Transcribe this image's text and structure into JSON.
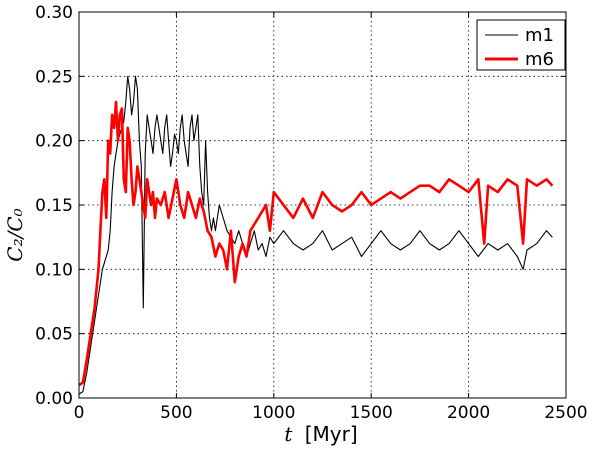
{
  "chart_data": {
    "type": "line",
    "xlabel_symbol": "t",
    "xlabel_unit": "[Myr]",
    "ylabel": "C₂/C₀",
    "xlim": [
      0,
      2500
    ],
    "ylim": [
      0,
      0.3
    ],
    "grid": true,
    "legend": "top-right",
    "x_ticks": [
      "0",
      "500",
      "1000",
      "1500",
      "2000",
      "2500"
    ],
    "y_ticks": [
      "0.00",
      "0.05",
      "0.10",
      "0.15",
      "0.20",
      "0.25",
      "0.30"
    ],
    "series": [
      {
        "name": "m1",
        "color": "#000000",
        "x": [
          0,
          20,
          40,
          60,
          80,
          100,
          120,
          140,
          150,
          160,
          170,
          180,
          190,
          200,
          210,
          220,
          230,
          240,
          250,
          260,
          270,
          280,
          290,
          300,
          310,
          320,
          330,
          340,
          350,
          360,
          370,
          380,
          390,
          400,
          410,
          420,
          430,
          440,
          450,
          460,
          470,
          480,
          490,
          500,
          510,
          520,
          530,
          540,
          550,
          560,
          570,
          580,
          590,
          600,
          610,
          620,
          630,
          640,
          650,
          660,
          670,
          680,
          690,
          700,
          720,
          740,
          760,
          780,
          800,
          820,
          840,
          860,
          880,
          900,
          920,
          940,
          960,
          980,
          1000,
          1050,
          1100,
          1150,
          1200,
          1250,
          1300,
          1350,
          1400,
          1450,
          1500,
          1550,
          1600,
          1650,
          1700,
          1750,
          1800,
          1850,
          1900,
          1950,
          2000,
          2050,
          2100,
          2150,
          2200,
          2250,
          2280,
          2300,
          2350,
          2400,
          2430
        ],
        "y": [
          0.003,
          0.005,
          0.02,
          0.04,
          0.06,
          0.08,
          0.1,
          0.11,
          0.115,
          0.13,
          0.16,
          0.18,
          0.19,
          0.2,
          0.205,
          0.21,
          0.215,
          0.23,
          0.25,
          0.24,
          0.22,
          0.23,
          0.25,
          0.24,
          0.2,
          0.18,
          0.07,
          0.19,
          0.22,
          0.21,
          0.2,
          0.19,
          0.21,
          0.22,
          0.21,
          0.2,
          0.19,
          0.21,
          0.22,
          0.2,
          0.18,
          0.19,
          0.205,
          0.2,
          0.19,
          0.21,
          0.22,
          0.2,
          0.19,
          0.18,
          0.21,
          0.22,
          0.2,
          0.21,
          0.22,
          0.18,
          0.16,
          0.15,
          0.2,
          0.16,
          0.14,
          0.13,
          0.14,
          0.13,
          0.15,
          0.14,
          0.13,
          0.125,
          0.12,
          0.13,
          0.12,
          0.11,
          0.12,
          0.13,
          0.115,
          0.12,
          0.11,
          0.125,
          0.12,
          0.13,
          0.12,
          0.115,
          0.12,
          0.13,
          0.115,
          0.12,
          0.125,
          0.11,
          0.12,
          0.13,
          0.12,
          0.115,
          0.12,
          0.13,
          0.12,
          0.115,
          0.12,
          0.13,
          0.12,
          0.11,
          0.12,
          0.115,
          0.12,
          0.11,
          0.1,
          0.115,
          0.12,
          0.13,
          0.125
        ]
      },
      {
        "name": "m6",
        "color": "#ff0000",
        "x": [
          0,
          20,
          40,
          60,
          80,
          100,
          110,
          120,
          130,
          140,
          150,
          160,
          170,
          180,
          190,
          200,
          210,
          220,
          230,
          240,
          250,
          260,
          270,
          280,
          290,
          300,
          310,
          320,
          330,
          340,
          350,
          360,
          370,
          380,
          390,
          400,
          420,
          440,
          460,
          480,
          500,
          520,
          540,
          560,
          580,
          600,
          620,
          640,
          660,
          680,
          700,
          720,
          740,
          760,
          780,
          800,
          820,
          840,
          860,
          880,
          900,
          920,
          940,
          960,
          980,
          1000,
          1050,
          1100,
          1150,
          1200,
          1250,
          1300,
          1350,
          1400,
          1450,
          1500,
          1550,
          1600,
          1650,
          1700,
          1750,
          1800,
          1850,
          1900,
          1950,
          2000,
          2050,
          2080,
          2100,
          2150,
          2200,
          2250,
          2280,
          2300,
          2350,
          2400,
          2430
        ],
        "y": [
          0.01,
          0.012,
          0.03,
          0.05,
          0.07,
          0.1,
          0.13,
          0.16,
          0.17,
          0.14,
          0.2,
          0.19,
          0.22,
          0.21,
          0.23,
          0.2,
          0.22,
          0.225,
          0.17,
          0.16,
          0.21,
          0.2,
          0.17,
          0.15,
          0.16,
          0.18,
          0.17,
          0.16,
          0.15,
          0.14,
          0.17,
          0.16,
          0.15,
          0.16,
          0.14,
          0.155,
          0.15,
          0.16,
          0.14,
          0.155,
          0.17,
          0.15,
          0.14,
          0.16,
          0.15,
          0.14,
          0.155,
          0.145,
          0.13,
          0.125,
          0.11,
          0.12,
          0.115,
          0.1,
          0.13,
          0.09,
          0.11,
          0.12,
          0.11,
          0.13,
          0.135,
          0.14,
          0.145,
          0.15,
          0.13,
          0.16,
          0.15,
          0.14,
          0.155,
          0.14,
          0.16,
          0.15,
          0.145,
          0.15,
          0.16,
          0.15,
          0.155,
          0.16,
          0.155,
          0.16,
          0.165,
          0.165,
          0.16,
          0.17,
          0.165,
          0.16,
          0.17,
          0.12,
          0.165,
          0.16,
          0.17,
          0.165,
          0.12,
          0.17,
          0.165,
          0.17,
          0.165
        ]
      }
    ]
  }
}
